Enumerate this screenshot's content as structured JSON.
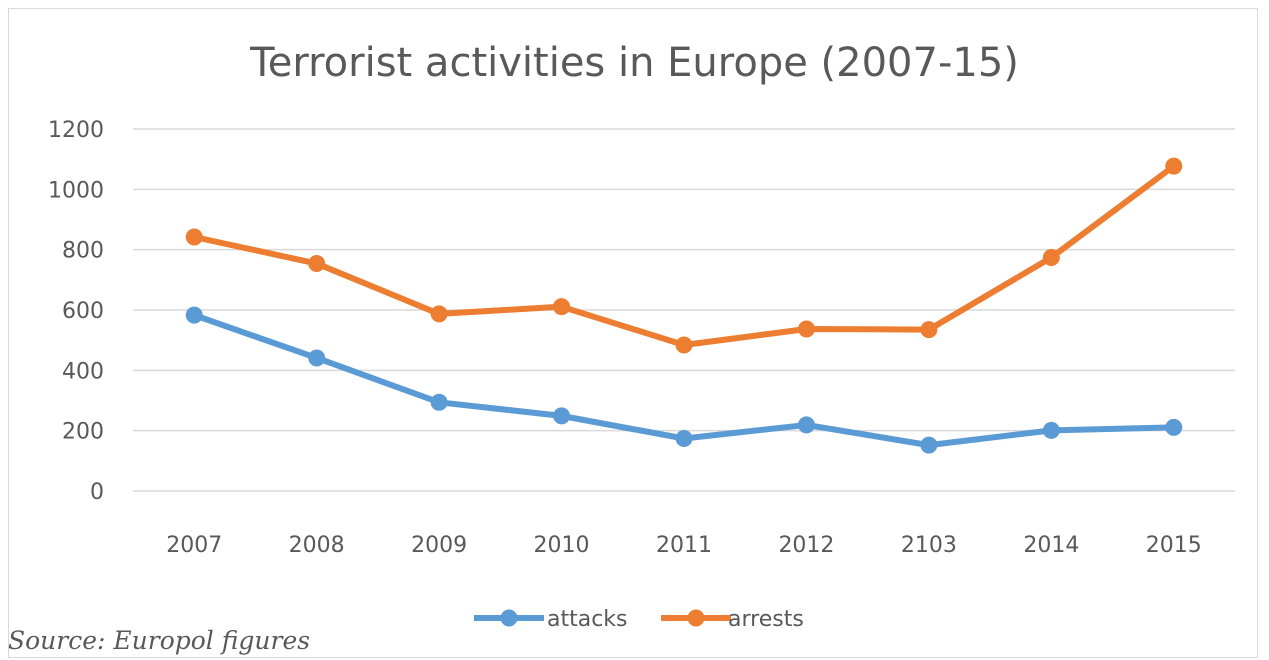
{
  "chart_data": {
    "type": "line",
    "title": "Terrorist activities in Europe (2007-15)",
    "categories": [
      "2007",
      "2008",
      "2009",
      "2010",
      "2011",
      "2012",
      "2103",
      "2014",
      "2015"
    ],
    "series": [
      {
        "name": "attacks",
        "color": "#5B9BD5",
        "values": [
          583,
          441,
          294,
          249,
          174,
          219,
          152,
          201,
          211
        ]
      },
      {
        "name": "arrests",
        "color": "#ED7D31",
        "values": [
          842,
          754,
          587,
          611,
          484,
          537,
          535,
          774,
          1077
        ]
      }
    ],
    "yticks": [
      "0",
      "200",
      "400",
      "600",
      "800",
      "1000",
      "1200"
    ],
    "ylim": [
      0,
      1200
    ],
    "grid": true,
    "legend_position": "bottom",
    "source": "Source: Europol figures"
  }
}
